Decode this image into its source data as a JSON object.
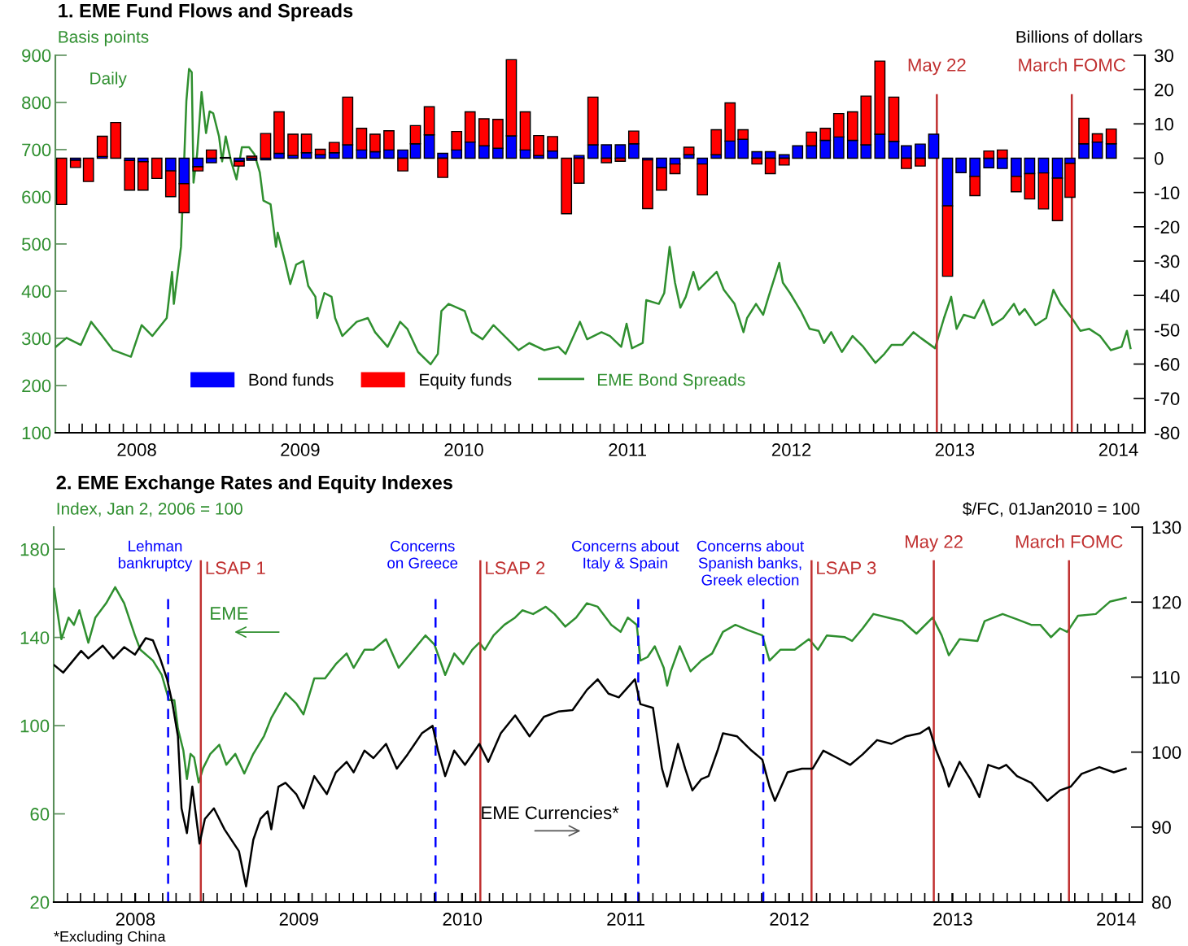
{
  "chart_data": [
    {
      "type": "bar",
      "title": "1. EME Fund Flows and Spreads",
      "ylabel": "Basis points",
      "y2label": "Billions of dollars",
      "annotations": [
        "Daily"
      ],
      "stacked": true,
      "legend": "bottom left",
      "x": [
        "2008-01-15",
        "2008-02-15",
        "2008-03-15",
        "2008-04-15",
        "2008-05-15",
        "2008-06-15",
        "2008-07-15",
        "2008-08-15",
        "2008-09-15",
        "2008-10-15",
        "2008-11-15",
        "2008-12-15",
        "2009-01-15",
        "2009-02-15",
        "2009-03-15",
        "2009-04-15",
        "2009-05-15",
        "2009-06-15",
        "2009-07-15",
        "2009-08-15",
        "2009-09-15",
        "2009-10-15",
        "2009-11-15",
        "2009-12-15",
        "2010-01-15",
        "2010-02-15",
        "2010-03-15",
        "2010-04-15",
        "2010-05-15",
        "2010-06-15",
        "2010-07-15",
        "2010-08-15",
        "2010-09-15",
        "2010-10-15",
        "2010-11-15",
        "2010-12-15",
        "2011-01-15",
        "2011-02-15",
        "2011-03-15",
        "2011-04-15",
        "2011-05-15",
        "2011-06-15",
        "2011-07-15",
        "2011-08-15",
        "2011-09-15",
        "2011-10-15",
        "2011-11-15",
        "2011-12-15",
        "2012-01-15",
        "2012-02-15",
        "2012-03-15",
        "2012-04-15",
        "2012-05-15",
        "2012-06-15",
        "2012-07-15",
        "2012-08-15",
        "2012-09-15",
        "2012-10-15",
        "2012-11-15",
        "2012-12-15",
        "2013-01-15",
        "2013-02-15",
        "2013-03-15",
        "2013-04-15",
        "2013-05-15",
        "2013-06-15",
        "2013-07-15",
        "2013-08-15",
        "2013-09-15",
        "2013-10-15",
        "2013-11-15",
        "2013-12-15",
        "2014-01-15",
        "2014-02-15",
        "2014-03-15",
        "2014-04-15",
        "2014-05-15",
        "2014-06-15"
      ],
      "series": [
        {
          "name": "Bond funds",
          "type": "bar",
          "axis": "y2",
          "color": "#0000ff",
          "values": [
            0,
            -0.6,
            0,
            0.5,
            0,
            -0.7,
            -1.0,
            null,
            -3.7,
            -7.4,
            -2.5,
            -1.3,
            null,
            -0.9,
            -0.6,
            -0.5,
            1.4,
            0.8,
            1.6,
            1.0,
            1.6,
            3.9,
            2.4,
            1.9,
            2.4,
            2.4,
            4.2,
            6.8,
            1.4,
            2.4,
            4.7,
            3.6,
            2.9,
            6.5,
            2.4,
            0.8,
            2.1,
            0,
            0.8,
            3.9,
            3.9,
            3.9,
            4.2,
            -0.5,
            -2.8,
            -1.7,
            1.0,
            -1.7,
            1.0,
            5.0,
            5.5,
            1.9,
            1.9,
            1.0,
            3.6,
            3.6,
            5.2,
            6.2,
            5.2,
            3.9,
            7.0,
            4.9,
            3.6,
            4.1,
            7.0,
            -13.9,
            -4.2,
            -5.3,
            -2.8,
            -3.0,
            -5.3,
            -4.5,
            -4.3,
            -5.8,
            -1.5,
            4.2,
            4.7,
            4.2
          ]
        },
        {
          "name": "Equity funds",
          "type": "bar",
          "axis": "y2",
          "color": "#ff0000",
          "values": [
            -13.5,
            -2.1,
            -6.8,
            5.9,
            10.4,
            -8.6,
            -8.3,
            -5.9,
            -7.5,
            -8.5,
            -1.2,
            2.4,
            0.2,
            -1.4,
            0.6,
            7.2,
            12.1,
            6.2,
            5.4,
            1.6,
            3.0,
            13.9,
            6.3,
            5.1,
            5.6,
            -3.7,
            5.3,
            8.2,
            -5.6,
            5.4,
            8.8,
            7.9,
            8.4,
            22.2,
            11.1,
            5.8,
            4.2,
            -16.2,
            -7.3,
            13.9,
            -1.3,
            -0.9,
            3.7,
            -14.2,
            -6.5,
            -2.8,
            2.2,
            -9.0,
            7.3,
            11.1,
            2.8,
            -1.7,
            -4.5,
            -2.0,
            0,
            4.0,
            3.5,
            6.8,
            8.3,
            14.2,
            21.3,
            12.9,
            -3.0,
            -2.3,
            0,
            -20.5,
            0,
            -5.6,
            2.1,
            2.4,
            -4.5,
            -7.4,
            -10.5,
            -12.4,
            -9.9,
            7.4,
            2.4,
            4.3
          ]
        },
        {
          "name": "EME Bond Spreads",
          "type": "line",
          "color": "#2f8f2f",
          "x": [
            "2008-01-02",
            "2008-01-26",
            "2008-02-27",
            "2008-03-21",
            "2008-04-15",
            "2008-05-09",
            "2008-06-18",
            "2008-07-12",
            "2008-08-05",
            "2008-09-06",
            "2008-09-18",
            "2008-09-22",
            "2008-10-08",
            "2008-10-20",
            "2008-10-26",
            "2008-11-01",
            "2008-11-05",
            "2008-11-13",
            "2008-11-23",
            "2008-12-03",
            "2008-12-11",
            "2008-12-19",
            "2009-01-01",
            "2009-01-08",
            "2009-01-16",
            "2009-01-28",
            "2009-02-09",
            "2009-02-21",
            "2009-03-09",
            "2009-03-21",
            "2009-04-02",
            "2009-04-10",
            "2009-04-26",
            "2009-05-08",
            "2009-05-12",
            "2009-05-28",
            "2009-06-09",
            "2009-06-22",
            "2009-07-08",
            "2009-07-19",
            "2009-08-04",
            "2009-08-08",
            "2009-08-24",
            "2009-09-09",
            "2009-09-17",
            "2009-10-03",
            "2009-10-19",
            "2009-11-04",
            "2009-11-29",
            "2009-12-15",
            "2010-01-12",
            "2010-02-09",
            "2010-02-25",
            "2010-03-21",
            "2010-04-18",
            "2010-05-04",
            "2010-05-12",
            "2010-05-28",
            "2010-07-03",
            "2010-07-19",
            "2010-08-12",
            "2010-09-05",
            "2010-10-07",
            "2010-10-31",
            "2010-11-24",
            "2010-12-27",
            "2011-01-28",
            "2011-02-13",
            "2011-03-17",
            "2011-04-02",
            "2011-05-04",
            "2011-05-23",
            "2011-06-17",
            "2011-06-29",
            "2011-07-11",
            "2011-08-04",
            "2011-08-12",
            "2011-09-09",
            "2011-09-21",
            "2011-10-03",
            "2011-10-15",
            "2011-10-27",
            "2011-11-08",
            "2011-11-25",
            "2011-12-07",
            "2011-12-31",
            "2012-01-16",
            "2012-02-01",
            "2012-02-25",
            "2012-03-16",
            "2012-03-24",
            "2012-04-13",
            "2012-04-29",
            "2012-05-11",
            "2012-06-04",
            "2012-06-12",
            "2012-06-28",
            "2012-07-22",
            "2012-08-11",
            "2012-08-31",
            "2012-09-12",
            "2012-09-28",
            "2012-10-22",
            "2012-11-15",
            "2012-12-09",
            "2013-01-05",
            "2013-01-25",
            "2013-02-10",
            "2013-03-06",
            "2013-03-31",
            "2013-04-16",
            "2013-05-18",
            "2013-06-07",
            "2013-06-23",
            "2013-07-05",
            "2013-07-21",
            "2013-08-14",
            "2013-09-03",
            "2013-09-23",
            "2013-10-17",
            "2013-11-10",
            "2013-11-22",
            "2013-12-04",
            "2013-12-28",
            "2014-01-21",
            "2014-02-06",
            "2014-02-22",
            "2014-03-22",
            "2014-04-07",
            "2014-04-27",
            "2014-05-21",
            "2014-06-14",
            "2014-07-08",
            "2014-07-20",
            "2014-07-28"
          ],
          "values": [
            282,
            301,
            286,
            335,
            305,
            275,
            261,
            328,
            305,
            343,
            441,
            373,
            494,
            803,
            871,
            864,
            630,
            690,
            822,
            735,
            781,
            777,
            728,
            675,
            728,
            675,
            637,
            705,
            705,
            690,
            652,
            592,
            584,
            494,
            524,
            464,
            415,
            456,
            464,
            411,
            388,
            343,
            396,
            388,
            343,
            305,
            320,
            335,
            343,
            313,
            282,
            335,
            320,
            271,
            245,
            267,
            358,
            373,
            358,
            313,
            298,
            328,
            298,
            275,
            290,
            275,
            282,
            267,
            335,
            298,
            313,
            305,
            282,
            331,
            279,
            290,
            381,
            373,
            396,
            494,
            418,
            365,
            388,
            441,
            403,
            426,
            441,
            403,
            373,
            313,
            343,
            373,
            350,
            388,
            460,
            418,
            396,
            358,
            320,
            316,
            290,
            313,
            271,
            305,
            282,
            248,
            267,
            286,
            286,
            313,
            301,
            279,
            343,
            388,
            320,
            350,
            343,
            381,
            328,
            343,
            373,
            350,
            362,
            328,
            343,
            403,
            373,
            339,
            316,
            320,
            305,
            275,
            282,
            316,
            279
          ]
        }
      ],
      "xlim": [
        "2008-01-01",
        "2014-08-29"
      ],
      "xticks": [
        {
          "value": "2008-07-01",
          "label": "2008"
        },
        {
          "value": "2009-07-01",
          "label": "2009"
        },
        {
          "value": "2010-07-01",
          "label": "2010"
        },
        {
          "value": "2011-07-01",
          "label": "2011"
        },
        {
          "value": "2012-07-01",
          "label": "2012"
        },
        {
          "value": "2013-07-01",
          "label": "2013"
        },
        {
          "value": "2014-07-01",
          "label": "2014"
        }
      ],
      "ylim": [
        100,
        900
      ],
      "yticks": [
        100,
        200,
        300,
        400,
        500,
        600,
        700,
        800,
        900
      ],
      "y2lim": [
        -80,
        30
      ],
      "y2ticks": [
        -80,
        -70,
        -60,
        -50,
        -40,
        -30,
        -20,
        -10,
        0,
        10,
        20,
        30
      ],
      "ref_lines": [
        {
          "axis": "x",
          "value": "2013-05-22",
          "label": "May 22",
          "color": "#c03030",
          "line_style": "solid"
        },
        {
          "axis": "x",
          "value": "2014-03-19",
          "label": "March FOMC",
          "color": "#c03030",
          "line_style": "solid"
        }
      ]
    },
    {
      "type": "line",
      "title": "2. EME Exchange Rates and Equity Indexes",
      "ylabel": "Index, Jan 2, 2006 = 100",
      "y2label": "$/FC, 01Jan2010 = 100",
      "annotations": [
        "*Excluding China"
      ],
      "series": [
        {
          "name": "EME",
          "color": "#2f8f2f",
          "x": [
            2008.003,
            2008.047,
            2008.091,
            2008.124,
            2008.157,
            2008.212,
            2008.255,
            2008.321,
            2008.376,
            2008.431,
            2008.497,
            2008.53,
            2008.607,
            2008.661,
            2008.705,
            2008.738,
            2008.76,
            2008.793,
            2008.815,
            2008.837,
            2008.859,
            2008.887,
            2008.914,
            2008.958,
            2009.013,
            2009.056,
            2009.111,
            2009.166,
            2009.221,
            2009.287,
            2009.331,
            2009.418,
            2009.484,
            2009.528,
            2009.594,
            2009.66,
            2009.726,
            2009.792,
            2009.835,
            2009.901,
            2009.956,
            2010.033,
            2010.11,
            2010.165,
            2010.274,
            2010.329,
            2010.395,
            2010.45,
            2010.505,
            2010.56,
            2010.604,
            2010.637,
            2010.691,
            2010.757,
            2010.823,
            2010.867,
            2010.933,
            2011.01,
            2011.064,
            2011.13,
            2011.196,
            2011.262,
            2011.328,
            2011.411,
            2011.468,
            2011.512,
            2011.567,
            2011.589,
            2011.633,
            2011.677,
            2011.732,
            2011.753,
            2011.775,
            2011.83,
            2011.896,
            2011.962,
            2012.028,
            2012.094,
            2012.17,
            2012.247,
            2012.335,
            2012.379,
            2012.445,
            2012.533,
            2012.62,
            2012.675,
            2012.73,
            2012.84,
            2012.884,
            2012.949,
            2013.015,
            2013.103,
            2013.191,
            2013.278,
            2013.377,
            2013.432,
            2013.476,
            2013.542,
            2013.651,
            2013.695,
            2013.805,
            2013.893,
            2013.98,
            2014.035,
            2014.101,
            2014.156,
            2014.2,
            2014.266,
            2014.375,
            2014.463,
            2014.558
          ],
          "values": [
            162.0,
            139.2,
            149.0,
            145.7,
            152.3,
            137.6,
            149.0,
            155.5,
            162.8,
            155.5,
            140.9,
            134.4,
            129.5,
            123.0,
            111.6,
            111.6,
            98.6,
            88.8,
            75.8,
            87.2,
            85.6,
            74.2,
            80.7,
            87.2,
            91.3,
            82.3,
            87.2,
            78.3,
            87.2,
            95.3,
            103.5,
            114.8,
            110.0,
            105.1,
            121.4,
            121.4,
            127.9,
            132.7,
            126.2,
            134.4,
            134.4,
            139.2,
            126.2,
            131.1,
            140.9,
            136.8,
            123.0,
            132.7,
            127.9,
            134.4,
            137.6,
            134.4,
            140.9,
            145.7,
            149.0,
            152.3,
            150.6,
            153.9,
            150.6,
            144.9,
            149.0,
            155.5,
            153.9,
            145.7,
            142.5,
            149.0,
            145.7,
            129.5,
            131.1,
            136.0,
            126.2,
            118.1,
            124.6,
            136.0,
            124.6,
            129.5,
            132.7,
            142.5,
            145.7,
            143.3,
            140.9,
            129.5,
            134.4,
            134.4,
            139.2,
            134.4,
            140.9,
            140.1,
            138.4,
            144.1,
            150.6,
            149.0,
            147.4,
            141.7,
            149.0,
            140.9,
            131.9,
            139.2,
            138.4,
            147.4,
            150.6,
            148.2,
            145.7,
            145.7,
            140.1,
            144.1,
            142.5,
            149.8,
            150.6,
            156.3,
            157.9
          ]
        },
        {
          "name": "EME Currencies*",
          "color": "#000000",
          "axis": "y2",
          "x": [
            2008.003,
            2008.058,
            2008.168,
            2008.212,
            2008.3,
            2008.365,
            2008.431,
            2008.497,
            2008.563,
            2008.607,
            2008.651,
            2008.694,
            2008.727,
            2008.76,
            2008.782,
            2008.815,
            2008.848,
            2008.892,
            2008.925,
            2008.98,
            2009.045,
            2009.133,
            2009.177,
            2009.221,
            2009.265,
            2009.309,
            2009.331,
            2009.375,
            2009.418,
            2009.484,
            2009.528,
            2009.594,
            2009.671,
            2009.726,
            2009.792,
            2009.835,
            2009.901,
            2009.956,
            2010.033,
            2010.099,
            2010.165,
            2010.252,
            2010.318,
            2010.351,
            2010.395,
            2010.45,
            2010.516,
            2010.604,
            2010.659,
            2010.735,
            2010.823,
            2010.911,
            2010.999,
            2011.086,
            2011.174,
            2011.262,
            2011.328,
            2011.394,
            2011.457,
            2011.556,
            2011.589,
            2011.666,
            2011.721,
            2011.753,
            2011.819,
            2011.863,
            2011.907,
            2011.962,
            2012.006,
            2012.061,
            2012.094,
            2012.181,
            2012.269,
            2012.335,
            2012.379,
            2012.412,
            2012.489,
            2012.577,
            2012.643,
            2012.708,
            2012.796,
            2012.873,
            2012.949,
            2013.037,
            2013.125,
            2013.213,
            2013.3,
            2013.355,
            2013.399,
            2013.443,
            2013.476,
            2013.542,
            2013.608,
            2013.663,
            2013.717,
            2013.783,
            2013.827,
            2013.893,
            2013.98,
            2014.079,
            2014.156,
            2014.222,
            2014.288,
            2014.397,
            2014.485,
            2014.558
          ],
          "values": [
            111.6,
            110.6,
            113.5,
            112.5,
            114.2,
            112.5,
            114.0,
            113.0,
            115.2,
            114.9,
            112.5,
            109.7,
            106.4,
            102.1,
            92.5,
            89.2,
            95.4,
            87.8,
            91.1,
            92.5,
            89.7,
            86.8,
            82.1,
            88.3,
            91.1,
            92.1,
            89.7,
            95.4,
            95.9,
            94.4,
            92.5,
            96.8,
            94.4,
            97.3,
            98.7,
            97.3,
            100.2,
            99.2,
            101.1,
            97.8,
            99.7,
            102.5,
            103.5,
            100.2,
            96.8,
            100.2,
            98.3,
            101.1,
            98.7,
            102.5,
            104.9,
            102.1,
            104.7,
            105.4,
            105.6,
            108.3,
            109.7,
            107.8,
            107.3,
            109.7,
            106.4,
            105.9,
            97.8,
            95.4,
            101.1,
            97.8,
            94.9,
            96.4,
            96.8,
            100.2,
            102.5,
            102.1,
            100.2,
            99.0,
            95.4,
            93.5,
            97.3,
            97.8,
            97.8,
            100.2,
            99.2,
            98.3,
            99.7,
            101.6,
            101.1,
            102.1,
            102.5,
            103.3,
            100.2,
            97.8,
            95.4,
            98.7,
            96.4,
            94.0,
            98.3,
            97.8,
            98.3,
            96.8,
            95.9,
            93.5,
            94.9,
            95.4,
            97.1,
            98.0,
            97.3,
            97.8
          ]
        }
      ],
      "xlim": [
        2008.0,
        2014.66
      ],
      "xticks": [
        {
          "value": 2008.5,
          "label": "2008"
        },
        {
          "value": 2009.5,
          "label": "2009"
        },
        {
          "value": 2010.5,
          "label": "2010"
        },
        {
          "value": 2011.5,
          "label": "2011"
        },
        {
          "value": 2012.5,
          "label": "2012"
        },
        {
          "value": 2013.5,
          "label": "2013"
        },
        {
          "value": 2014.5,
          "label": "2014"
        }
      ],
      "ylim": [
        20,
        190
      ],
      "yticks": [
        20,
        60,
        100,
        140,
        180
      ],
      "y2lim": [
        80,
        130
      ],
      "y2ticks": [
        80,
        90,
        100,
        110,
        120,
        130
      ],
      "ref_lines": [
        {
          "axis": "x",
          "value": 2008.7,
          "label": "Lehman\nbankruptcy",
          "color": "#0000ff",
          "line_style": "dashed"
        },
        {
          "axis": "x",
          "value": 2008.9,
          "label": "LSAP 1",
          "color": "#c03030",
          "line_style": "solid"
        },
        {
          "axis": "x",
          "value": 2010.336,
          "label": "Concerns\non Greece",
          "color": "#0000ff",
          "line_style": "dashed"
        },
        {
          "axis": "x",
          "value": 2010.61,
          "label": "LSAP 2",
          "color": "#c03030",
          "line_style": "solid"
        },
        {
          "axis": "x",
          "value": 2011.576,
          "label": "Concerns about\nItaly & Spain",
          "color": "#0000ff",
          "line_style": "dashed"
        },
        {
          "axis": "x",
          "value": 2012.341,
          "label": "Concerns about\nSpanish banks,\nGreek election",
          "color": "#0000ff",
          "line_style": "dashed"
        },
        {
          "axis": "x",
          "value": 2012.636,
          "label": "LSAP 3",
          "color": "#c03030",
          "line_style": "solid"
        },
        {
          "axis": "x",
          "value": 2013.384,
          "label": "May 22",
          "color": "#c03030",
          "line_style": "solid"
        },
        {
          "axis": "x",
          "value": 2014.211,
          "label": "March FOMC",
          "color": "#c03030",
          "line_style": "solid"
        }
      ]
    }
  ]
}
